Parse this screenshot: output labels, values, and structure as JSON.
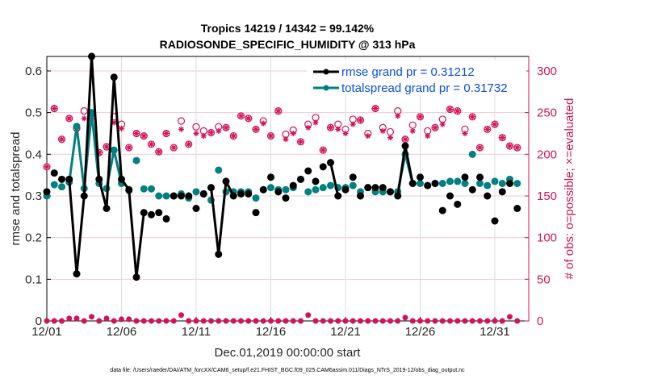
{
  "chart_data": {
    "type": "line",
    "title_line1": "Tropics 14219 / 14342 = 99.142%",
    "title_line2": "RADIOSONDE_SPECIFIC_HUMIDITY @ 313 hPa",
    "xlabel": "Dec.01,2019 00:00:00 start",
    "ylabel_left": "rmse and totalspread",
    "ylabel_right": "# of obs: o=possible; ×=evaluated",
    "footnote": "data file: /Users/raeder/DAI/ATM_forcXX/CAM6_setup/f.e21.FHIST_BGC.f09_025.CAM6assim.011/Diags_NTrS_2019-12/obs_diag_output.nc",
    "ylim_left": [
      0,
      0.63
    ],
    "ylim_right": [
      0,
      315
    ],
    "yticks_left": [
      "0",
      "0.1",
      "0.2",
      "0.3",
      "0.4",
      "0.5",
      "0.6"
    ],
    "yticks_right": [
      "0",
      "50",
      "100",
      "150",
      "200",
      "250",
      "300"
    ],
    "xticks": [
      "12/01",
      "12/06",
      "12/11",
      "12/16",
      "12/21",
      "12/26",
      "12/31"
    ],
    "x_days": [
      0,
      0.5,
      1,
      1.5,
      2,
      2.5,
      3,
      3.5,
      4,
      4.5,
      5,
      5.5,
      6,
      6.5,
      7,
      7.5,
      8,
      8.5,
      9,
      9.5,
      10,
      10.5,
      11,
      11.5,
      12,
      12.5,
      13,
      13.5,
      14,
      14.5,
      15,
      15.5,
      16,
      16.5,
      17,
      17.5,
      18,
      18.5,
      19,
      19.5,
      20,
      20.5,
      21,
      21.5,
      22,
      22.5,
      23,
      23.5,
      24,
      24.5,
      25,
      25.5,
      26,
      26.5,
      27,
      27.5,
      28,
      28.5,
      29,
      29.5,
      30,
      30.5,
      31,
      31.5
    ],
    "legend": [
      {
        "label": "rmse grand pr = 0.31212",
        "color": "#000000"
      },
      {
        "label": "totalspread grand pr = 0.31732",
        "color": "#008080"
      }
    ],
    "series": [
      {
        "name": "rmse",
        "color": "#000000",
        "values": [
          0.31,
          0.355,
          0.34,
          0.34,
          0.113,
          0.3,
          0.635,
          0.34,
          0.27,
          0.585,
          0.34,
          0.315,
          0.105,
          0.26,
          0.255,
          0.26,
          0.245,
          0.3,
          0.3,
          0.3,
          0.27,
          0.305,
          0.32,
          0.16,
          0.335,
          0.3,
          0.305,
          0.305,
          0.26,
          0.315,
          0.345,
          0.31,
          0.295,
          0.325,
          0.34,
          0.36,
          0.335,
          0.37,
          0.38,
          0.3,
          0.315,
          0.345,
          0.3,
          0.32,
          0.32,
          0.32,
          0.31,
          0.3,
          0.42,
          0.33,
          0.345,
          0.325,
          0.33,
          0.265,
          0.3,
          0.28,
          0.345,
          0.315,
          0.345,
          0.3,
          0.24,
          0.31,
          0.33,
          0.27
        ]
      },
      {
        "name": "totalspread",
        "color": "#008080",
        "values": [
          0.3,
          0.327,
          0.322,
          0.333,
          0.467,
          0.318,
          0.5,
          0.33,
          0.318,
          0.41,
          0.33,
          0.313,
          0.385,
          0.317,
          0.317,
          0.3,
          0.3,
          0.3,
          0.305,
          0.295,
          0.31,
          0.305,
          0.29,
          0.362,
          0.31,
          0.31,
          0.31,
          0.31,
          0.295,
          0.315,
          0.32,
          0.315,
          0.315,
          0.32,
          0.34,
          0.31,
          0.315,
          0.32,
          0.325,
          0.32,
          0.32,
          0.325,
          0.31,
          0.32,
          0.31,
          0.31,
          0.31,
          0.31,
          0.4,
          0.33,
          0.33,
          0.325,
          0.33,
          0.33,
          0.335,
          0.335,
          0.33,
          0.4,
          0.33,
          0.325,
          0.335,
          0.33,
          0.34,
          0.33
        ]
      },
      {
        "name": "possible",
        "color": "#d1145a",
        "axis": "right",
        "values": [
          185,
          255,
          218,
          243,
          231,
          252,
          249,
          202,
          209,
          245,
          236,
          208,
          225,
          222,
          212,
          203,
          225,
          208,
          240,
          212,
          233,
          228,
          226,
          233,
          232,
          222,
          246,
          243,
          230,
          240,
          222,
          252,
          224,
          229,
          215,
          236,
          244,
          205,
          232,
          236,
          230,
          242,
          241,
          225,
          255,
          232,
          227,
          252,
          218,
          235,
          245,
          228,
          232,
          242,
          254,
          252,
          230,
          245,
          208,
          230,
          236,
          220,
          210,
          208
        ]
      },
      {
        "name": "evaluated",
        "color": "#d1145a",
        "axis": "right",
        "values": [
          185,
          255,
          218,
          243,
          231,
          243,
          243,
          202,
          209,
          238,
          231,
          208,
          225,
          222,
          212,
          203,
          225,
          208,
          230,
          212,
          225,
          222,
          226,
          228,
          232,
          222,
          246,
          243,
          230,
          237,
          222,
          252,
          218,
          225,
          215,
          232,
          238,
          205,
          232,
          230,
          225,
          236,
          241,
          222,
          255,
          228,
          220,
          246,
          218,
          228,
          245,
          222,
          232,
          236,
          254,
          252,
          225,
          245,
          208,
          230,
          236,
          220,
          210,
          208
        ]
      },
      {
        "name": "possible_bottom",
        "color": "#d1145a",
        "axis": "right",
        "values": [
          0,
          0,
          0,
          3,
          3,
          0,
          5,
          0,
          3,
          0,
          2,
          2,
          0,
          0,
          0,
          0,
          0,
          0,
          7,
          0,
          0,
          0,
          0,
          0,
          0,
          0,
          0,
          0,
          0,
          0,
          0,
          0,
          0,
          0,
          0,
          7,
          0,
          0,
          0,
          0,
          0,
          0,
          0,
          0,
          0,
          0,
          0,
          0,
          4,
          0,
          0,
          0,
          0,
          0,
          0,
          0,
          0,
          0,
          0,
          0,
          0,
          0,
          5,
          0
        ]
      }
    ]
  }
}
